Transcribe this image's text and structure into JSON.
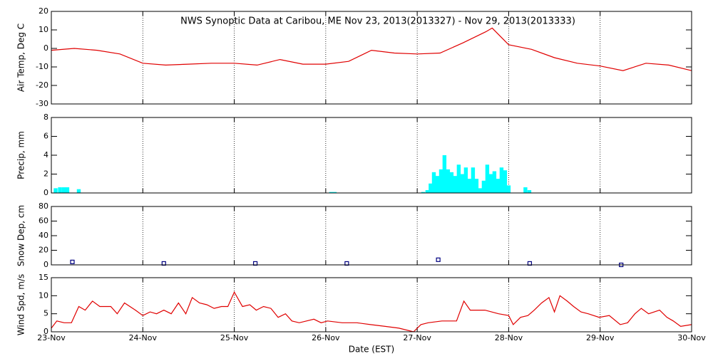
{
  "chart_data": [
    {
      "type": "line",
      "title": "NWS Synoptic Data at Caribou, ME    Nov 23, 2013(2013327) - Nov 29, 2013(2013333)",
      "ylabel": "Air Temp, Deg C",
      "ylim": [
        -30,
        20
      ],
      "yticks": [
        -30,
        -20,
        -10,
        0,
        10,
        20
      ],
      "color": "#e00000",
      "x": [
        0,
        0.25,
        0.5,
        0.75,
        1.0,
        1.25,
        1.5,
        1.75,
        2.0,
        2.25,
        2.5,
        2.75,
        3.0,
        3.25,
        3.5,
        3.75,
        4.0,
        4.25,
        4.5,
        4.75,
        4.82,
        5.0,
        5.25,
        5.5,
        5.75,
        6.0,
        6.25,
        6.5,
        6.75,
        7.0
      ],
      "values": [
        -1,
        0,
        -1,
        -3,
        -8,
        -9,
        -8.5,
        -8,
        -8,
        -9,
        -6,
        -8.5,
        -8.5,
        -7,
        -1,
        -2.5,
        -3,
        -2.5,
        3,
        9,
        11,
        2,
        -0.5,
        -5,
        -8,
        -9.5,
        -12,
        -8,
        -9,
        -12
      ]
    },
    {
      "type": "bar",
      "ylabel": "Precip, mm",
      "ylim": [
        0,
        8
      ],
      "yticks": [
        0,
        2,
        4,
        6,
        8
      ],
      "color": "#00ffff",
      "x": [
        0.047,
        0.094,
        0.136,
        0.175,
        0.3,
        3.059,
        3.098,
        4.065,
        4.111,
        4.146,
        4.182,
        4.22,
        4.26,
        4.298,
        4.337,
        4.376,
        4.415,
        4.454,
        4.493,
        4.532,
        4.571,
        4.61,
        4.649,
        4.688,
        4.727,
        4.766,
        4.805,
        4.844,
        4.883,
        4.922,
        4.961,
        5.0,
        5.183,
        5.226
      ],
      "values": [
        0.5,
        0.6,
        0.6,
        0.6,
        0.4,
        0.1,
        0.1,
        0.1,
        0.3,
        1.0,
        2.2,
        1.8,
        2.5,
        4.0,
        2.5,
        2.2,
        1.8,
        3.0,
        2.0,
        2.7,
        1.5,
        2.7,
        1.5,
        0.5,
        1.3,
        3.0,
        2.0,
        2.3,
        1.5,
        2.7,
        2.4,
        0.8,
        0.6,
        0.3
      ]
    },
    {
      "type": "scatter",
      "ylabel": "Snow Dep, cm",
      "ylim": [
        0,
        80
      ],
      "yticks": [
        0,
        20,
        40,
        60,
        80
      ],
      "color": "#000080",
      "x": [
        0.23,
        1.23,
        2.23,
        3.23,
        4.23,
        5.23,
        6.23
      ],
      "values": [
        4,
        2,
        2,
        2,
        7,
        2,
        0
      ]
    },
    {
      "type": "line",
      "ylabel": "Wind Spd, m/s",
      "ylim": [
        0,
        15
      ],
      "yticks": [
        0,
        5,
        10,
        15
      ],
      "color": "#e00000",
      "xlabel": "Date (EST)",
      "xlim": [
        0,
        7
      ],
      "xticks": [
        {
          "value": 0,
          "label": "23-Nov"
        },
        {
          "value": 1,
          "label": "24-Nov"
        },
        {
          "value": 2,
          "label": "25-Nov"
        },
        {
          "value": 3,
          "label": "26-Nov"
        },
        {
          "value": 4,
          "label": "27-Nov"
        },
        {
          "value": 5,
          "label": "28-Nov"
        },
        {
          "value": 6,
          "label": "29-Nov"
        },
        {
          "value": 7,
          "label": "30-Nov"
        }
      ],
      "x": [
        0,
        0.06,
        0.14,
        0.22,
        0.3,
        0.37,
        0.45,
        0.53,
        0.65,
        0.72,
        0.8,
        0.92,
        1.0,
        1.08,
        1.15,
        1.23,
        1.31,
        1.39,
        1.47,
        1.54,
        1.62,
        1.7,
        1.78,
        1.86,
        1.93,
        2.0,
        2.09,
        2.17,
        2.24,
        2.32,
        2.4,
        2.48,
        2.56,
        2.63,
        2.71,
        2.79,
        2.87,
        2.95,
        3.02,
        3.18,
        3.34,
        3.49,
        3.65,
        3.8,
        3.96,
        4.04,
        4.12,
        4.27,
        4.43,
        4.51,
        4.58,
        4.74,
        4.89,
        5.0,
        5.05,
        5.13,
        5.21,
        5.28,
        5.36,
        5.44,
        5.5,
        5.56,
        5.64,
        5.71,
        5.79,
        5.87,
        5.99,
        6.1,
        6.22,
        6.3,
        6.38,
        6.45,
        6.53,
        6.65,
        6.73,
        6.8,
        6.88,
        7.0
      ],
      "values": [
        1,
        3,
        2.5,
        2.5,
        7,
        6,
        8.5,
        7,
        7,
        5,
        8,
        6,
        4.5,
        5.5,
        5,
        6,
        5,
        8,
        5,
        9.5,
        8,
        7.5,
        6.5,
        7,
        7,
        11,
        7,
        7.5,
        6,
        7,
        6.5,
        4,
        5,
        3,
        2.5,
        3,
        3.5,
        2.5,
        3,
        2.5,
        2.5,
        2,
        1.5,
        1,
        0,
        2,
        2.5,
        3,
        3,
        8.5,
        6,
        6,
        5,
        4.5,
        2,
        4,
        4.5,
        6,
        8,
        9.5,
        5.5,
        10,
        8.5,
        7,
        5.5,
        5,
        4,
        4.5,
        2,
        2.5,
        5,
        6.5,
        5,
        6,
        4,
        3,
        1.5,
        2
      ]
    }
  ]
}
